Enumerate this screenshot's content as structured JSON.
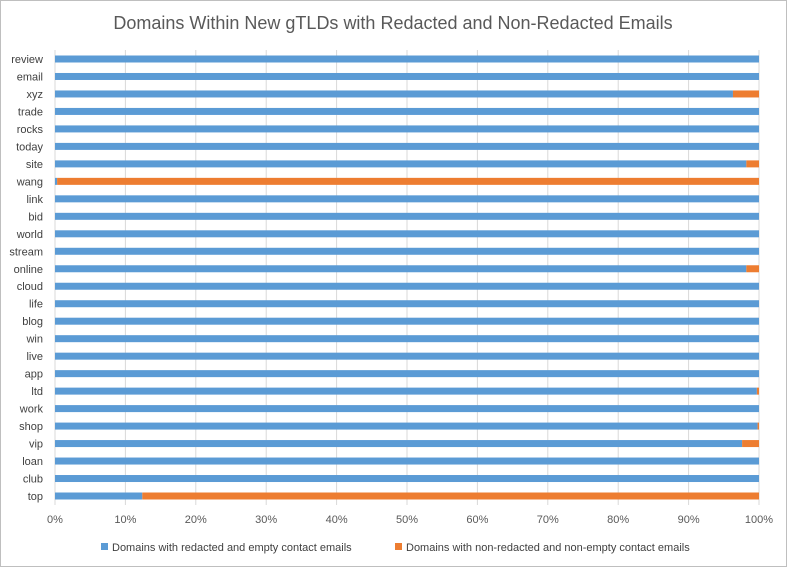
{
  "chart_data": {
    "type": "bar",
    "orientation": "horizontal",
    "stacked": "percent",
    "title": "Domains Within New gTLDs with Redacted and Non-Redacted Emails",
    "xlabel": "",
    "ylabel": "",
    "xlim": [
      0,
      100
    ],
    "x_ticks": [
      "0%",
      "10%",
      "20%",
      "30%",
      "40%",
      "50%",
      "60%",
      "70%",
      "80%",
      "90%",
      "100%"
    ],
    "categories_top_to_bottom": [
      "review",
      "email",
      "xyz",
      "trade",
      "rocks",
      "today",
      "site",
      "wang",
      "link",
      "bid",
      "world",
      "stream",
      "online",
      "cloud",
      "life",
      "blog",
      "win",
      "live",
      "app",
      "ltd",
      "work",
      "shop",
      "vip",
      "loan",
      "club",
      "top"
    ],
    "series": [
      {
        "name": "Domains with redacted and empty contact emails",
        "color": "#5B9BD5",
        "values": [
          100,
          100,
          96.3,
          100,
          100,
          100,
          98.2,
          0.3,
          100,
          100,
          100,
          100,
          98.2,
          100,
          100,
          100,
          100,
          100,
          100,
          99.7,
          100,
          99.8,
          97.6,
          100,
          100,
          12.4
        ]
      },
      {
        "name": "Domains with non-redacted and non-empty contact emails",
        "color": "#ED7D31",
        "values": [
          0,
          0,
          3.7,
          0,
          0,
          0,
          1.8,
          99.7,
          0,
          0,
          0,
          0,
          1.8,
          0,
          0,
          0,
          0,
          0,
          0,
          0.3,
          0,
          0.2,
          2.4,
          0,
          0,
          87.6
        ]
      }
    ],
    "grid": true,
    "legend_position": "bottom"
  }
}
